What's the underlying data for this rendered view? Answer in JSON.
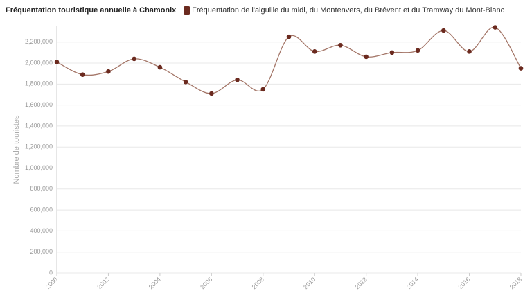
{
  "chart_data": {
    "type": "line",
    "title": "Fréquentation touristique annuelle à Chamonix",
    "y_label": "Nombre de touristes",
    "x": [
      2000,
      2001,
      2002,
      2003,
      2004,
      2005,
      2006,
      2007,
      2008,
      2009,
      2010,
      2011,
      2012,
      2013,
      2014,
      2015,
      2016,
      2017,
      2018
    ],
    "series": [
      {
        "name": "Fréquentation de l'aiguille du midi, du Montenvers, du Brévent et du Tramway du Mont-Blanc",
        "color": "#6b2a1f",
        "line_color": "#a47668",
        "values": [
          2010000,
          1890000,
          1920000,
          2040000,
          1960000,
          1820000,
          1710000,
          1840000,
          1750000,
          2250000,
          2110000,
          2170000,
          2060000,
          2100000,
          2120000,
          2310000,
          2110000,
          2340000,
          1950000
        ]
      }
    ],
    "xlim": [
      2000,
      2018
    ],
    "xticks": [
      2000,
      2002,
      2004,
      2006,
      2008,
      2010,
      2012,
      2014,
      2016,
      2018
    ],
    "ylim": [
      0,
      2350000
    ],
    "yticks": [
      0,
      {
        "value": 200000,
        "label": "200,000"
      },
      {
        "value": 400000,
        "label": "400,000"
      },
      {
        "value": 600000,
        "label": "600,000"
      },
      {
        "value": 800000,
        "label": "800,000"
      },
      {
        "value": 1000000,
        "label": "1,000,000"
      },
      {
        "value": 1200000,
        "label": "1,200,000"
      },
      {
        "value": 1400000,
        "label": "1,400,000"
      },
      {
        "value": 1600000,
        "label": "1,600,000"
      },
      {
        "value": 1800000,
        "label": "1,800,000"
      },
      {
        "value": 2000000,
        "label": "2,000,000"
      },
      {
        "value": 2200000,
        "label": "2,200,000"
      }
    ],
    "grid": true
  }
}
